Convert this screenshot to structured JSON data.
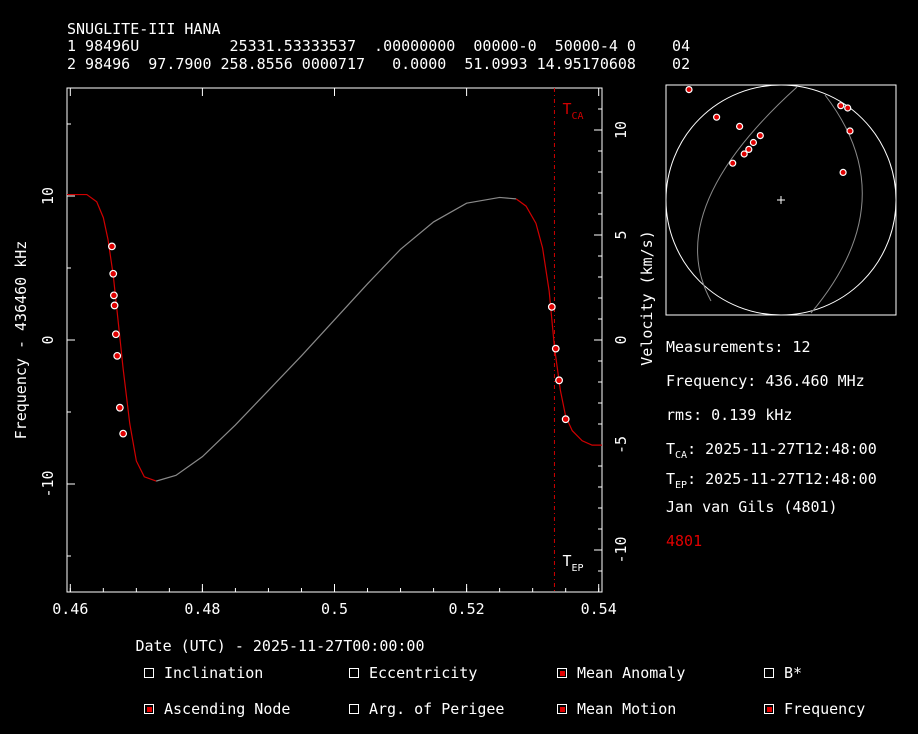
{
  "header": {
    "name": "SNUGLITE-III HANA",
    "tle_line1": "1 98496U          25331.53333537  .00000000  00000-0  50000-4 0    04",
    "tle_line2": "2 98496  97.7900 258.8556 0000717   0.0000  51.0993 14.95170608    02"
  },
  "chart_data": {
    "type": "line",
    "xlabel": "Date (UTC) - 2025-11-27T00:00:00",
    "ylabel": "Frequency - 436460 kHz",
    "y2label": "Velocity (km/s)",
    "xlim": [
      0.4595,
      0.5405
    ],
    "ylim": [
      -17.5,
      17.5
    ],
    "y2lim": [
      -12.0,
      12.0
    ],
    "x_ticks": [
      0.46,
      0.48,
      0.5,
      0.52,
      0.54
    ],
    "x_tick_labels": [
      "0.46",
      "0.48",
      "0.5",
      "0.52",
      "0.54"
    ],
    "y_ticks": [
      -10,
      0,
      10
    ],
    "y_tick_labels": [
      "-10",
      "0",
      "10"
    ],
    "y2_ticks": [
      -10,
      -5,
      0,
      5,
      10
    ],
    "y2_tick_labels": [
      "-10",
      "-5",
      "0",
      "5",
      "10"
    ],
    "tca_x": 0.5333,
    "tca_label": "T",
    "tca_sub": "CA",
    "tep_label": "T",
    "tep_sub": "EP",
    "curve": [
      [
        0.4595,
        10.1
      ],
      [
        0.4625,
        10.1
      ],
      [
        0.464,
        9.6
      ],
      [
        0.465,
        8.5
      ],
      [
        0.4657,
        7.0
      ],
      [
        0.4665,
        4.5
      ],
      [
        0.4672,
        1.5
      ],
      [
        0.468,
        -2.0
      ],
      [
        0.469,
        -5.8
      ],
      [
        0.47,
        -8.4
      ],
      [
        0.4712,
        -9.5
      ],
      [
        0.473,
        -9.8
      ],
      [
        0.476,
        -9.4
      ],
      [
        0.48,
        -8.1
      ],
      [
        0.485,
        -5.9
      ],
      [
        0.49,
        -3.5
      ],
      [
        0.495,
        -1.1
      ],
      [
        0.5,
        1.4
      ],
      [
        0.505,
        3.9
      ],
      [
        0.51,
        6.3
      ],
      [
        0.515,
        8.2
      ],
      [
        0.52,
        9.5
      ],
      [
        0.525,
        9.9
      ],
      [
        0.5275,
        9.8
      ],
      [
        0.529,
        9.3
      ],
      [
        0.5305,
        8.1
      ],
      [
        0.5315,
        6.4
      ],
      [
        0.5325,
        3.4
      ],
      [
        0.5333,
        -0.5
      ],
      [
        0.5342,
        -3.5
      ],
      [
        0.535,
        -5.3
      ],
      [
        0.536,
        -6.3
      ],
      [
        0.5375,
        -7.0
      ],
      [
        0.539,
        -7.3
      ],
      [
        0.5405,
        -7.3
      ]
    ],
    "red_ranges": [
      [
        0.4595,
        0.4712
      ],
      [
        0.527,
        0.5405
      ]
    ],
    "points": [
      [
        0.4663,
        6.5
      ],
      [
        0.4665,
        4.6
      ],
      [
        0.4666,
        3.1
      ],
      [
        0.4667,
        2.4
      ],
      [
        0.4669,
        0.4
      ],
      [
        0.4671,
        -1.1
      ],
      [
        0.4675,
        -4.7
      ],
      [
        0.468,
        -6.5
      ],
      [
        0.5329,
        2.3
      ],
      [
        0.5335,
        -0.6
      ],
      [
        0.534,
        -2.8
      ],
      [
        0.535,
        -5.5
      ]
    ]
  },
  "skymap": {
    "points": [
      [
        -0.4,
        0.48
      ],
      [
        -0.28,
        0.36
      ],
      [
        -0.18,
        0.32
      ],
      [
        -0.09,
        0.28
      ],
      [
        -0.12,
        0.25
      ],
      [
        -0.14,
        0.22
      ],
      [
        -0.16,
        0.2
      ],
      [
        -0.21,
        0.16
      ],
      [
        0.26,
        0.41
      ],
      [
        0.29,
        0.4
      ],
      [
        0.3,
        0.3
      ],
      [
        0.27,
        0.12
      ]
    ]
  },
  "info": {
    "measurements": "Measurements: 12",
    "frequency": "Frequency: 436.460 MHz",
    "rms": "rms: 0.139 kHz",
    "tca_prefix": "T",
    "tca_sub": "CA",
    "tca_value": ": 2025-11-27T12:48:00",
    "tep_prefix": "T",
    "tep_sub": "EP",
    "tep_value": ": 2025-11-27T12:48:00",
    "observer": "Jan van Gils (4801)",
    "site_id": "4801"
  },
  "checkboxes": [
    {
      "label": "Inclination",
      "checked": false
    },
    {
      "label": "Eccentricity",
      "checked": false
    },
    {
      "label": "Mean Anomaly",
      "checked": true
    },
    {
      "label": "B*",
      "checked": false
    },
    {
      "label": "Ascending Node",
      "checked": true
    },
    {
      "label": "Arg. of Perigee",
      "checked": false
    },
    {
      "label": "Mean Motion",
      "checked": true
    },
    {
      "label": "Frequency",
      "checked": true
    }
  ],
  "colors": {
    "fit": "#d00000",
    "track": "#8a8a8a",
    "point_fill": "#e00000",
    "point_edge": "#ffffff",
    "axes": "#ffffff"
  }
}
